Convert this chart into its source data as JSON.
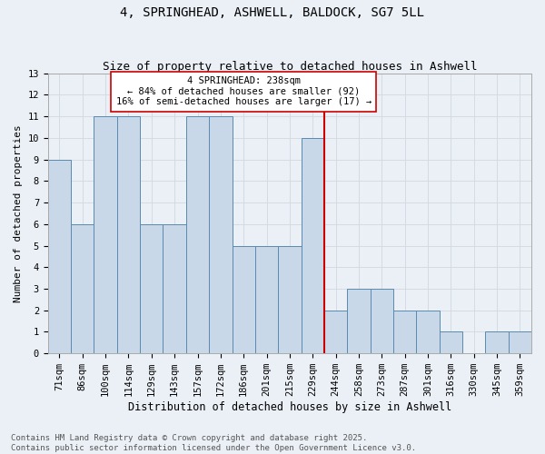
{
  "title": "4, SPRINGHEAD, ASHWELL, BALDOCK, SG7 5LL",
  "subtitle": "Size of property relative to detached houses in Ashwell",
  "xlabel": "Distribution of detached houses by size in Ashwell",
  "ylabel": "Number of detached properties",
  "categories": [
    "71sqm",
    "86sqm",
    "100sqm",
    "114sqm",
    "129sqm",
    "143sqm",
    "157sqm",
    "172sqm",
    "186sqm",
    "201sqm",
    "215sqm",
    "229sqm",
    "244sqm",
    "258sqm",
    "273sqm",
    "287sqm",
    "301sqm",
    "316sqm",
    "330sqm",
    "345sqm",
    "359sqm"
  ],
  "values": [
    9,
    6,
    11,
    11,
    6,
    6,
    11,
    11,
    5,
    5,
    5,
    10,
    2,
    3,
    3,
    2,
    2,
    1,
    0,
    1,
    1
  ],
  "bar_color": "#c8d8e8",
  "bar_edge_color": "#5a8ab0",
  "vline_x": 11.5,
  "vline_color": "#cc0000",
  "annotation_text": "4 SPRINGHEAD: 238sqm\n← 84% of detached houses are smaller (92)\n16% of semi-detached houses are larger (17) →",
  "annotation_box_color": "#ffffff",
  "annotation_box_edge_color": "#cc0000",
  "ylim": [
    0,
    13
  ],
  "yticks": [
    0,
    1,
    2,
    3,
    4,
    5,
    6,
    7,
    8,
    9,
    10,
    11,
    12,
    13
  ],
  "grid_color": "#d0d8e0",
  "background_color": "#eaf0f6",
  "footer": "Contains HM Land Registry data © Crown copyright and database right 2025.\nContains public sector information licensed under the Open Government Licence v3.0.",
  "title_fontsize": 10,
  "subtitle_fontsize": 9,
  "xlabel_fontsize": 8.5,
  "ylabel_fontsize": 8,
  "tick_fontsize": 7.5,
  "annotation_fontsize": 7.5,
  "footer_fontsize": 6.5
}
